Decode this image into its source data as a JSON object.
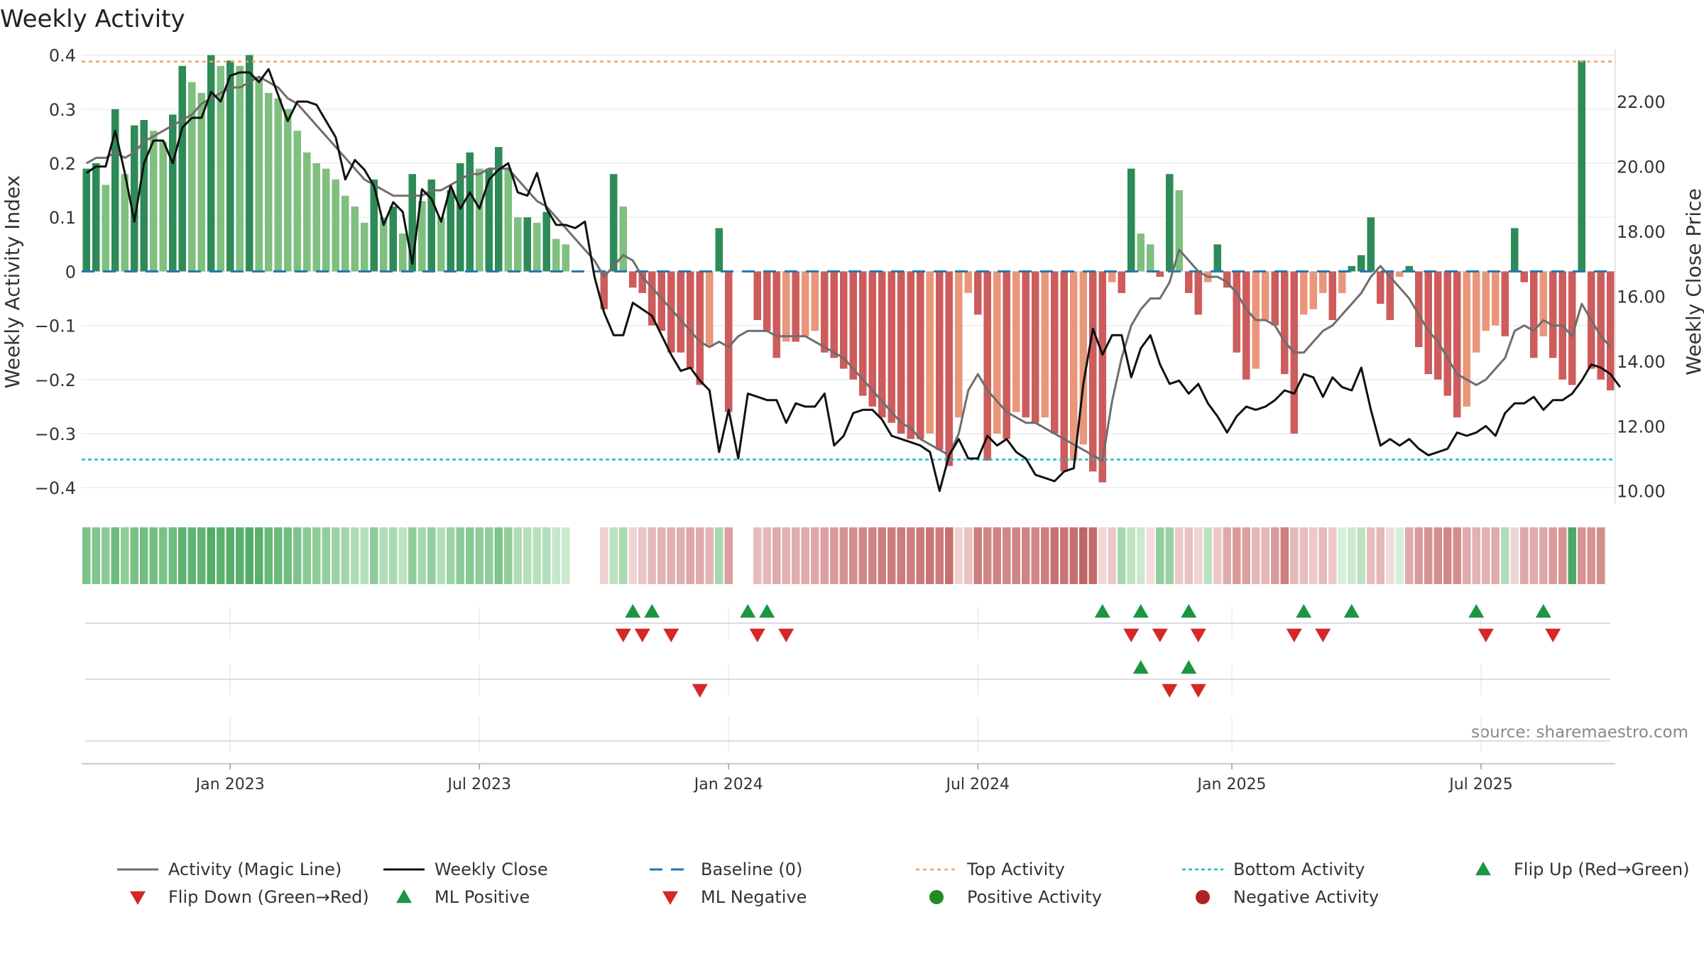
{
  "chart_data": {
    "type": "bar",
    "title": "Weekly Activity",
    "ylabel": "Weekly Activity Index",
    "y2label": "Weekly Close Price",
    "source": "source: sharemaestro.com",
    "ylim": [
      -0.43,
      0.41
    ],
    "y2lim": [
      9.6,
      23.6
    ],
    "yticks": [
      0.4,
      0.3,
      0.2,
      0.1,
      0,
      -0.1,
      -0.2,
      -0.3,
      -0.4
    ],
    "ytick_labels": [
      "0.4",
      "0.3",
      "0.2",
      "0.1",
      "0",
      "−0.1",
      "−0.2",
      "−0.3",
      "−0.4"
    ],
    "y2ticks": [
      22,
      20,
      18,
      16,
      14,
      12,
      10
    ],
    "y2tick_labels": [
      "22.00",
      "20.00",
      "18.00",
      "16.00",
      "14.00",
      "12.00",
      "10.00"
    ],
    "x_range_weeks": [
      0,
      159
    ],
    "x_ticks": [
      {
        "label": "Jan 2023",
        "week": 15
      },
      {
        "label": "Jul 2023",
        "week": 41
      },
      {
        "label": "Jan 2024",
        "week": 67
      },
      {
        "label": "Jul 2024",
        "week": 93
      },
      {
        "label": "Jan 2025",
        "week": 119.5
      },
      {
        "label": "Jul 2025",
        "week": 145.5
      }
    ],
    "top_activity": 0.388,
    "bottom_activity": -0.348,
    "baseline": 0,
    "activity_values": [
      0.19,
      0.2,
      0.16,
      0.3,
      0.18,
      0.27,
      0.28,
      0.26,
      0.24,
      0.29,
      0.38,
      0.35,
      0.33,
      0.4,
      0.38,
      0.39,
      0.38,
      0.4,
      0.36,
      0.33,
      0.32,
      0.3,
      0.26,
      0.22,
      0.2,
      0.19,
      0.17,
      0.14,
      0.12,
      0.09,
      0.17,
      0.1,
      0.12,
      0.07,
      0.18,
      0.13,
      0.17,
      0.1,
      0.15,
      0.2,
      0.22,
      0.19,
      0.19,
      0.23,
      0.19,
      0.1,
      0.1,
      0.09,
      0.11,
      0.06,
      0.05,
      0.0,
      0.0,
      0.0,
      -0.07,
      0.18,
      0.12,
      -0.03,
      -0.04,
      -0.1,
      -0.11,
      -0.15,
      -0.15,
      -0.18,
      -0.21,
      -0.14,
      0.08,
      -0.26,
      0.0,
      0.0,
      -0.09,
      -0.11,
      -0.16,
      -0.13,
      -0.13,
      -0.12,
      -0.11,
      -0.15,
      -0.16,
      -0.18,
      -0.2,
      -0.23,
      -0.25,
      -0.27,
      -0.28,
      -0.3,
      -0.31,
      -0.31,
      -0.3,
      -0.33,
      -0.36,
      -0.27,
      -0.04,
      -0.08,
      -0.35,
      -0.3,
      -0.31,
      -0.26,
      -0.27,
      -0.28,
      -0.27,
      -0.3,
      -0.37,
      -0.35,
      -0.32,
      -0.37,
      -0.39,
      -0.02,
      -0.04,
      0.19,
      0.07,
      0.05,
      -0.01,
      0.18,
      0.15,
      -0.04,
      -0.08,
      -0.02,
      0.05,
      -0.03,
      -0.15,
      -0.2,
      -0.18,
      -0.09,
      -0.1,
      -0.19,
      -0.3,
      -0.08,
      -0.07,
      -0.04,
      -0.09,
      -0.04,
      0.01,
      0.03,
      0.1,
      -0.06,
      -0.09,
      -0.01,
      0.01,
      -0.14,
      -0.19,
      -0.2,
      -0.23,
      -0.27,
      -0.25,
      -0.15,
      -0.11,
      -0.1,
      -0.12,
      0.08,
      -0.02,
      -0.16,
      -0.12,
      -0.16,
      -0.2,
      -0.21,
      0.39,
      -0.18,
      -0.2,
      -0.22
    ],
    "weekly_close": [
      19.8,
      20.0,
      20.0,
      21.1,
      19.8,
      18.3,
      20.1,
      20.8,
      20.8,
      20.1,
      21.2,
      21.5,
      21.5,
      22.3,
      22.0,
      22.8,
      22.9,
      22.9,
      22.6,
      23.0,
      22.2,
      21.4,
      22.0,
      22.0,
      21.9,
      21.4,
      20.9,
      19.6,
      20.2,
      19.9,
      19.4,
      18.2,
      18.9,
      18.6,
      17.0,
      19.3,
      19.0,
      18.3,
      19.4,
      18.7,
      19.2,
      18.7,
      19.6,
      19.9,
      20.1,
      19.2,
      19.1,
      19.8,
      18.7,
      18.2,
      18.2,
      18.1,
      18.3,
      16.6,
      15.5,
      14.8,
      14.8,
      15.8,
      15.6,
      15.4,
      14.8,
      14.2,
      13.7,
      13.8,
      13.4,
      13.1,
      11.2,
      12.5,
      11.0,
      13.0,
      12.9,
      12.8,
      12.8,
      12.1,
      12.7,
      12.6,
      12.6,
      13.0,
      11.4,
      11.7,
      12.4,
      12.5,
      12.5,
      12.2,
      11.7,
      11.6,
      11.5,
      11.4,
      11.2,
      10.0,
      11.1,
      11.6,
      11.0,
      11.0,
      11.7,
      11.4,
      11.6,
      11.2,
      11.0,
      10.5,
      10.4,
      10.3,
      10.6,
      10.7,
      13.3,
      15.0,
      14.2,
      14.8,
      14.8,
      13.5,
      14.4,
      14.8,
      13.9,
      13.3,
      13.4,
      13.0,
      13.3,
      12.7,
      12.3,
      11.8,
      12.3,
      12.6,
      12.5,
      12.6,
      12.8,
      13.1,
      13.0,
      13.6,
      13.5,
      12.9,
      13.5,
      13.2,
      13.1,
      13.8,
      12.5,
      11.4,
      11.6,
      11.4,
      11.6,
      11.3,
      11.1,
      11.2,
      11.3,
      11.8,
      11.7,
      11.8,
      12.0,
      11.7,
      12.4,
      12.7,
      12.7,
      12.9,
      12.5,
      12.8,
      12.8,
      13.0,
      13.4,
      13.9,
      13.8,
      13.6,
      13.2
    ],
    "magic_line": [
      0.2,
      0.21,
      0.21,
      0.22,
      0.21,
      0.22,
      0.24,
      0.25,
      0.26,
      0.27,
      0.28,
      0.29,
      0.31,
      0.32,
      0.33,
      0.34,
      0.34,
      0.35,
      0.36,
      0.35,
      0.34,
      0.32,
      0.31,
      0.29,
      0.27,
      0.25,
      0.23,
      0.21,
      0.19,
      0.17,
      0.16,
      0.15,
      0.14,
      0.14,
      0.14,
      0.14,
      0.15,
      0.15,
      0.16,
      0.17,
      0.18,
      0.18,
      0.19,
      0.19,
      0.19,
      0.17,
      0.15,
      0.13,
      0.12,
      0.1,
      0.08,
      0.06,
      0.04,
      0.02,
      -0.01,
      0.01,
      0.03,
      0.02,
      -0.01,
      -0.03,
      -0.05,
      -0.07,
      -0.09,
      -0.11,
      -0.13,
      -0.14,
      -0.13,
      -0.14,
      -0.12,
      -0.11,
      -0.11,
      -0.11,
      -0.12,
      -0.12,
      -0.12,
      -0.12,
      -0.13,
      -0.14,
      -0.15,
      -0.16,
      -0.18,
      -0.2,
      -0.22,
      -0.24,
      -0.26,
      -0.28,
      -0.29,
      -0.31,
      -0.32,
      -0.33,
      -0.34,
      -0.3,
      -0.22,
      -0.19,
      -0.22,
      -0.24,
      -0.26,
      -0.27,
      -0.28,
      -0.28,
      -0.29,
      -0.3,
      -0.31,
      -0.32,
      -0.33,
      -0.34,
      -0.35,
      -0.24,
      -0.16,
      -0.1,
      -0.07,
      -0.05,
      -0.05,
      -0.02,
      0.04,
      0.02,
      0.0,
      -0.01,
      -0.01,
      -0.02,
      -0.04,
      -0.07,
      -0.09,
      -0.09,
      -0.1,
      -0.13,
      -0.15,
      -0.15,
      -0.13,
      -0.11,
      -0.1,
      -0.08,
      -0.06,
      -0.04,
      -0.01,
      0.01,
      -0.01,
      -0.03,
      -0.05,
      -0.08,
      -0.11,
      -0.13,
      -0.16,
      -0.19,
      -0.2,
      -0.21,
      -0.2,
      -0.18,
      -0.16,
      -0.11,
      -0.1,
      -0.11,
      -0.09,
      -0.1,
      -0.1,
      -0.12,
      -0.06,
      -0.09,
      -0.12,
      -0.14
    ],
    "strip_colors": [
      "#7cc389",
      "#82c68f",
      "#8ccb98",
      "#6fbb7f",
      "#8ecc9a",
      "#79c287",
      "#72be81",
      "#74be83",
      "#7ac287",
      "#6fbc80",
      "#5cb26f",
      "#61b573",
      "#63b575",
      "#53ad68",
      "#5bb16d",
      "#57af6b",
      "#5ab06d",
      "#53ac68",
      "#59b06c",
      "#68b879",
      "#6bba7b",
      "#72bd80",
      "#7fc48c",
      "#8aca96",
      "#8fcc9a",
      "#93ce9e",
      "#9ad2a4",
      "#a3d6ac",
      "#acdbb4",
      "#b7e0bd",
      "#8ecc9a",
      "#b1ddb8",
      "#a9d9b1",
      "#bde2c2",
      "#8fcc9a",
      "#a6d8af",
      "#95cfa0",
      "#b4dfbb",
      "#9cd3a6",
      "#8ccb98",
      "#86c891",
      "#8fcc9a",
      "#91cd9c",
      "#7fc48c",
      "#92cd9c",
      "#b1ddb8",
      "#b4dfbb",
      "#b8e1be",
      "#b3deba",
      "#c6e7cb",
      "#cbe9cf",
      "#ffffff",
      "#ffffff",
      "#ffffff",
      "#f1d1d1",
      "#bde2c2",
      "#a9d9b1",
      "#f0d4d4",
      "#e9c4c4",
      "#e4b9b9",
      "#e2b3b3",
      "#e1b0b0",
      "#e0afaf",
      "#dea8a8",
      "#e0abab",
      "#e3b5b5",
      "#a6d8af",
      "#dc9f9f",
      "#ffffff",
      "#ffffff",
      "#e6bdbd",
      "#e4b8b8",
      "#dfaaaa",
      "#e2b1b1",
      "#e0acac",
      "#dfaaaa",
      "#dea7a7",
      "#dba0a0",
      "#d99b9b",
      "#d59393",
      "#d38e8e",
      "#d18888",
      "#cf8383",
      "#cd7f7f",
      "#cc7c7c",
      "#cc7c7c",
      "#cd7f7f",
      "#cb7a7a",
      "#c97575",
      "#cc7c7c",
      "#c67070",
      "#f0d4d4",
      "#e8c1c1",
      "#cd7f7f",
      "#d08585",
      "#cf8383",
      "#d18888",
      "#d08585",
      "#cf8383",
      "#d18888",
      "#cd7f7f",
      "#c77272",
      "#c97575",
      "#c67070",
      "#c06666",
      "#c36b6b",
      "#f2d8d8",
      "#ecc8c8",
      "#a6d8af",
      "#bde2c2",
      "#cbe9cf",
      "#f4dcdc",
      "#93ce9e",
      "#9ad2a4",
      "#ecc8c8",
      "#e8c1c1",
      "#f0d4d4",
      "#bde2c2",
      "#ecc8c8",
      "#dfaaaa",
      "#d99b9b",
      "#dba0a0",
      "#e4b8b8",
      "#e4b7b7",
      "#d99b9b",
      "#cd7f7f",
      "#e5baba",
      "#e7bfbf",
      "#ecc8c8",
      "#e5baba",
      "#ecc8c8",
      "#d6efd9",
      "#cbe9cf",
      "#bde2c2",
      "#e6bdbd",
      "#e4b8b8",
      "#f4dcdc",
      "#d6efd9",
      "#dfaaaa",
      "#d99b9b",
      "#d59393",
      "#d38e8e",
      "#d18888",
      "#d38e8e",
      "#dfaaaa",
      "#e2b1b1",
      "#e2b3b3",
      "#e0abab",
      "#b1ddb8",
      "#f0d4d4",
      "#dea8a8",
      "#e0abab",
      "#dea8a8",
      "#d99b9b",
      "#d59393",
      "#4ca864",
      "#d59393",
      "#d59393",
      "#d38e8e"
    ],
    "flip_up_weeks": [
      57,
      59,
      69,
      71,
      106,
      110,
      115,
      127,
      132,
      145,
      152
    ],
    "flip_down_weeks": [
      56,
      58,
      61,
      70,
      73,
      109,
      112,
      116,
      126,
      129,
      146,
      153
    ],
    "ml_positive_weeks": [
      110,
      115
    ],
    "ml_negative_weeks": [
      64,
      113,
      116
    ],
    "legend": [
      [
        "Activity (Magic Line)",
        "Weekly Close",
        "Baseline (0)",
        "Top Activity",
        "Bottom Activity",
        "Flip Up (Red→Green)"
      ],
      [
        "Flip Down (Green→Red)",
        "ML Positive",
        "ML Negative",
        "Positive Activity",
        "Negative Activity"
      ]
    ],
    "colors": {
      "pos_strong": "#2e8b57",
      "pos_light": "#7fbf7f",
      "neg_strong": "#cd5c5c",
      "neg_light": "#e9967a",
      "magic_line": "#6e6e6e",
      "close": "#111111",
      "baseline": "#1f77b4",
      "top": "#f4a460",
      "bottom": "#17becf",
      "flip_up": "#1a9641",
      "flip_down": "#d62728",
      "positive_dot": "#228b22",
      "negative_dot": "#b22222"
    }
  }
}
